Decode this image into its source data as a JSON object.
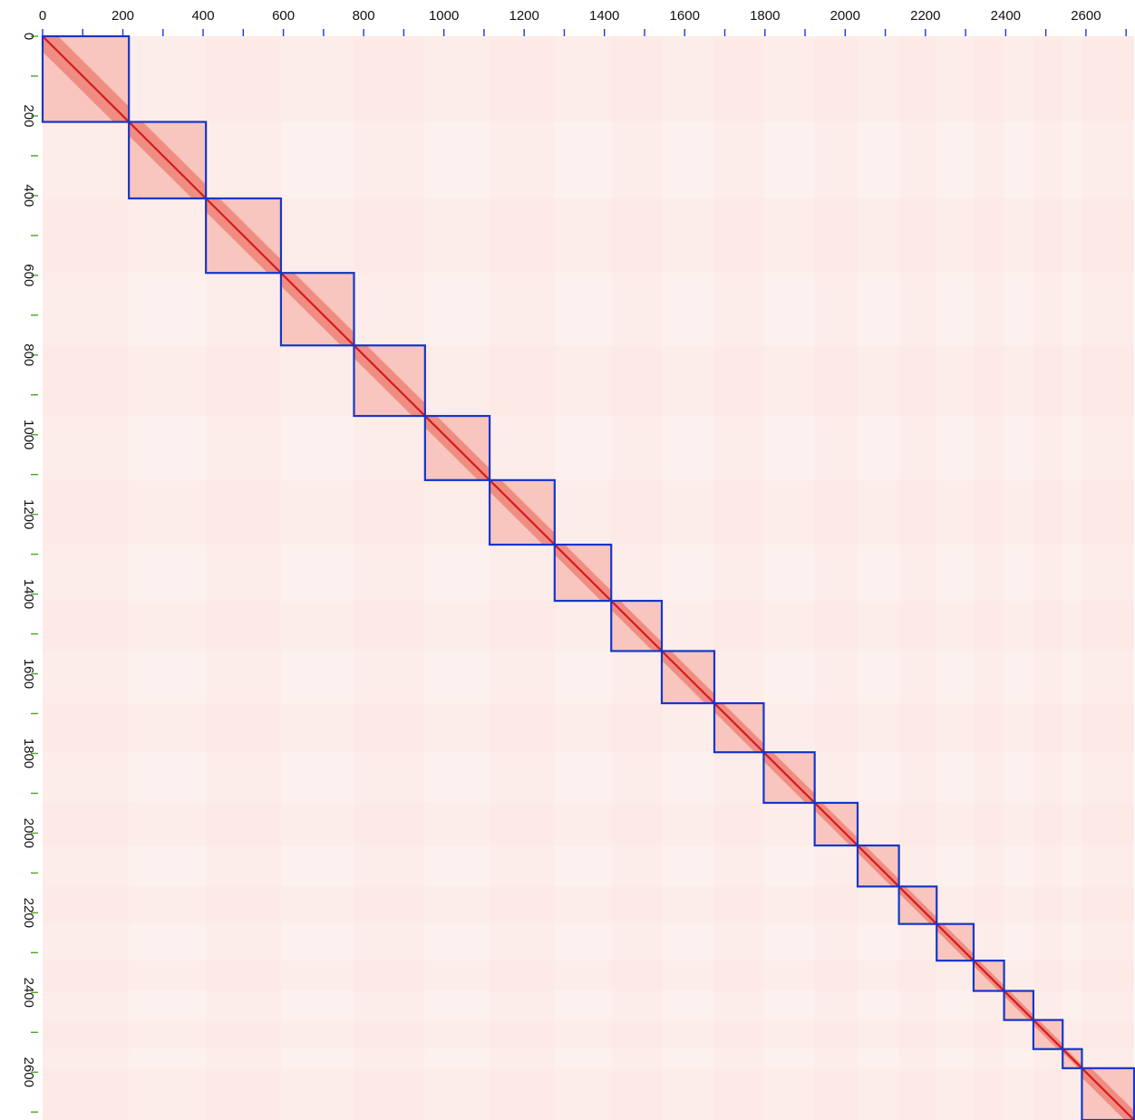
{
  "chart_data": {
    "type": "heatmap",
    "title": "",
    "xlabel": "",
    "ylabel": "",
    "xlim": [
      0,
      2720
    ],
    "ylim": [
      2720,
      0
    ],
    "x_ticks": [
      0,
      200,
      400,
      600,
      800,
      1000,
      1200,
      1400,
      1600,
      1800,
      2000,
      2200,
      2400,
      2600
    ],
    "y_ticks": [
      0,
      200,
      400,
      600,
      800,
      1000,
      1200,
      1400,
      1600,
      1800,
      2000,
      2200,
      2400,
      2600
    ],
    "minor_tick_step": 100,
    "grid": false,
    "colormap": {
      "low": "#fff5f4",
      "high": "#d7191c"
    },
    "diagonal_blocks": [
      [
        0,
        215
      ],
      [
        215,
        407
      ],
      [
        407,
        594
      ],
      [
        594,
        776
      ],
      [
        776,
        953
      ],
      [
        953,
        1114
      ],
      [
        1114,
        1276
      ],
      [
        1276,
        1417
      ],
      [
        1417,
        1543
      ],
      [
        1543,
        1674
      ],
      [
        1674,
        1797
      ],
      [
        1797,
        1924
      ],
      [
        1924,
        2031
      ],
      [
        2031,
        2134
      ],
      [
        2134,
        2228
      ],
      [
        2228,
        2320
      ],
      [
        2320,
        2396
      ],
      [
        2396,
        2469
      ],
      [
        2469,
        2542
      ],
      [
        2542,
        2590
      ],
      [
        2590,
        2720
      ]
    ]
  },
  "colors": {
    "block_outline": "#1536c9",
    "tick_mark_x": "#2233dd",
    "tick_mark_y": "#44aa22",
    "axis_text": "#111111"
  }
}
